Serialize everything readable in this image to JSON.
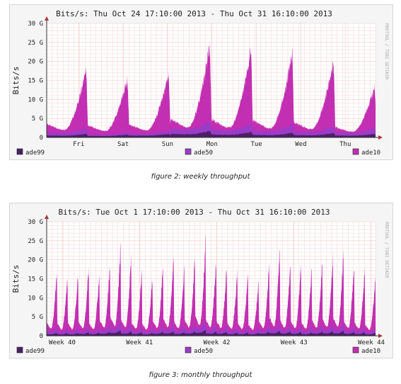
{
  "figures": [
    {
      "caption": "figure 2: weekly throughput",
      "chart_data": {
        "type": "area",
        "title": "Bits/s: Thu Oct 24 17:10:00 2013 - Thu Oct 31 16:10:00 2013",
        "ylabel": "Bits/s",
        "xlabel": "",
        "watermark": "RRDTOOL / TOBI OETIKER",
        "ylim": [
          0,
          30
        ],
        "yticks": [
          "0",
          "5 G",
          "10 G",
          "15 G",
          "20 G",
          "25 G",
          "30 G"
        ],
        "xticks": [
          "Fri",
          "Sat",
          "Sun",
          "Mon",
          "Tue",
          "Wed",
          "Thu"
        ],
        "legend_placement": "bottom",
        "grid": true,
        "series": [
          {
            "name": "ade99",
            "color": "#4b1f66"
          },
          {
            "name": "ade50",
            "color": "#9a3cc8"
          },
          {
            "name": "ade10",
            "color": "#c22fb2"
          }
        ],
        "daily_peaks_total": [
          20.5,
          18,
          19.5,
          28,
          27,
          25.5,
          23,
          15.5
        ],
        "daily_peaks_ade50": [
          2.5,
          1.5,
          2,
          4.5,
          4,
          3.5,
          3,
          2.5
        ],
        "daily_peaks_ade99": [
          1,
          0.8,
          1,
          1.8,
          1.5,
          1.3,
          1.2,
          1
        ]
      }
    },
    {
      "caption": "figure 3: monthly throughput",
      "chart_data": {
        "type": "area",
        "title": "Bits/s: Tue Oct  1 17:10:00 2013 - Thu Oct 31 16:10:00 2013",
        "ylabel": "Bits/s",
        "xlabel": "",
        "watermark": "RRDTOOL / TOBI OETIKER",
        "ylim": [
          0,
          30
        ],
        "yticks": [
          "0",
          "5 G",
          "10 G",
          "15 G",
          "20 G",
          "25 G",
          "30 G"
        ],
        "xticks": [
          "Week 40",
          "Week 41",
          "Week 42",
          "Week 43",
          "Week 44"
        ],
        "legend_placement": "bottom",
        "grid": true,
        "series": [
          {
            "name": "ade99",
            "color": "#4b1f66"
          },
          {
            "name": "ade50",
            "color": "#9a3cc8"
          },
          {
            "name": "ade10",
            "color": "#c22fb2"
          }
        ],
        "daily_peaks_total": [
          20,
          18,
          19,
          21,
          19,
          23,
          28,
          24,
          20,
          18,
          22,
          25,
          21,
          24,
          29,
          24,
          22,
          20,
          19,
          17,
          22,
          27,
          23,
          22,
          20,
          23,
          25,
          26,
          22,
          20,
          17
        ],
        "daily_peaks_ade50": [
          2.5,
          2,
          2.2,
          2.6,
          2.2,
          3,
          4,
          3.2,
          2.5,
          2,
          2.8,
          3.3,
          2.7,
          3.1,
          4.2,
          3.2,
          2.8,
          2.4,
          2.3,
          2,
          2.8,
          3.6,
          3,
          2.8,
          2.4,
          3,
          3.3,
          3.4,
          2.8,
          2.5,
          2
        ],
        "daily_peaks_ade99": [
          0.9,
          0.8,
          0.8,
          1,
          0.9,
          1.1,
          1.6,
          1.2,
          1,
          0.8,
          1.1,
          1.3,
          1,
          1.2,
          1.7,
          1.2,
          1.1,
          0.9,
          0.9,
          0.8,
          1.1,
          1.4,
          1.2,
          1.1,
          0.9,
          1.2,
          1.3,
          1.4,
          1.1,
          1,
          0.8
        ]
      }
    }
  ]
}
